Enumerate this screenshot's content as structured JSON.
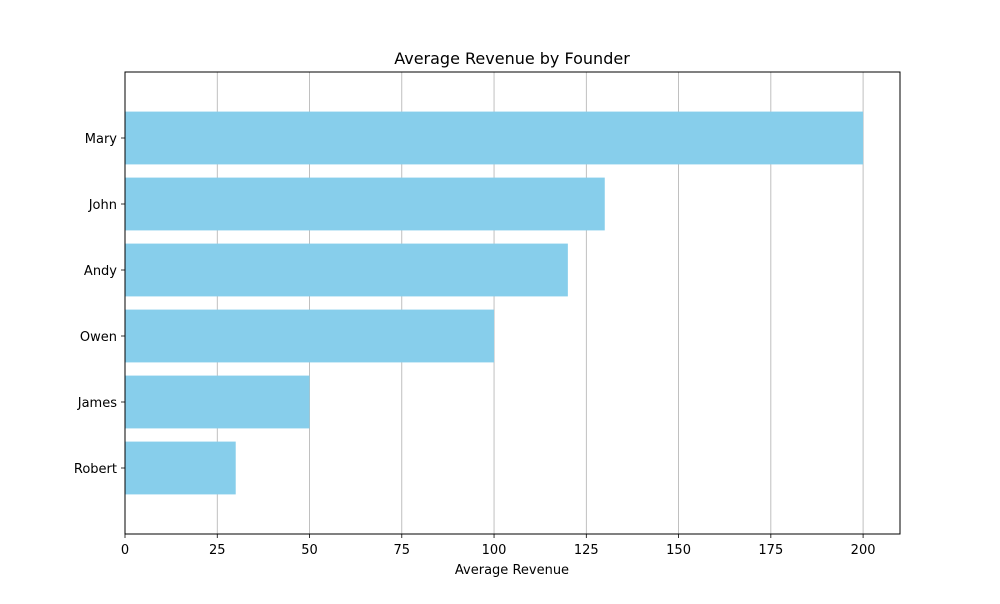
{
  "chart_data": {
    "type": "bar",
    "orientation": "horizontal",
    "title": "Average Revenue by Founder",
    "xlabel": "Average Revenue",
    "ylabel": "",
    "categories": [
      "Robert",
      "James",
      "Owen",
      "Andy",
      "John",
      "Mary"
    ],
    "values": [
      30,
      50,
      100,
      120,
      130,
      200
    ],
    "xlim": [
      0,
      210
    ],
    "xticks": [
      0,
      25,
      50,
      75,
      100,
      125,
      150,
      175,
      200
    ],
    "grid": "vertical",
    "legend": "none",
    "colors": {
      "bar": "#87CEEB",
      "grid": "#b0b0b0",
      "axis": "#000000"
    }
  }
}
